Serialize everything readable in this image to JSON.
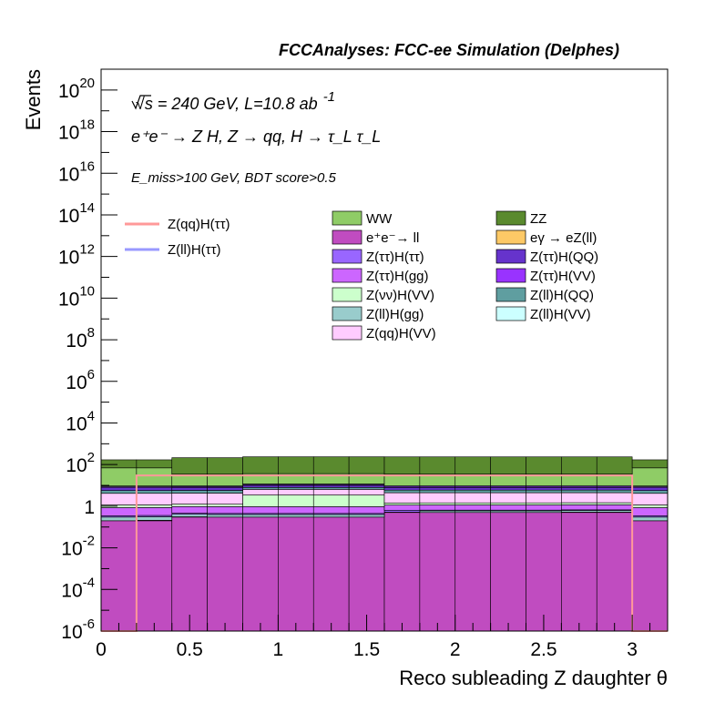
{
  "chart_data": {
    "type": "stacked-histogram",
    "header": "FCCAnalyses: FCC-ee Simulation (Delphes)",
    "xlabel": "Reco subleading Z daughter θ",
    "ylabel": "Events",
    "xlim": [
      0,
      3.2
    ],
    "ylim": [
      1e-06,
      1e+21
    ],
    "yscale": "log",
    "x_ticks": [
      "0",
      "0.5",
      "1",
      "1.5",
      "2",
      "2.5",
      "3"
    ],
    "y_ticks": [
      {
        "base": "10",
        "exp": "20"
      },
      {
        "base": "10",
        "exp": "18"
      },
      {
        "base": "10",
        "exp": "16"
      },
      {
        "base": "10",
        "exp": "14"
      },
      {
        "base": "10",
        "exp": "12"
      },
      {
        "base": "10",
        "exp": "10"
      },
      {
        "base": "10",
        "exp": "8"
      },
      {
        "base": "10",
        "exp": "6"
      },
      {
        "base": "10",
        "exp": "4"
      },
      {
        "base": "10",
        "exp": "2"
      },
      {
        "base": "1",
        "exp": ""
      },
      {
        "base": "10",
        "exp": "-2"
      },
      {
        "base": "10",
        "exp": "-4"
      },
      {
        "base": "10",
        "exp": "-6"
      }
    ],
    "annotations": {
      "energy": "√s = 240 GeV, L=10.8 ab",
      "energy_sup": "-1",
      "process": "e⁺e⁻ → Z H, Z → qq, H → τ_L τ_L",
      "cuts": "E_miss>100 GeV, BDT score>0.5"
    },
    "bin_edges": [
      0,
      0.2,
      0.4,
      0.6,
      0.8,
      1.0,
      1.2,
      1.4,
      1.6,
      1.8,
      2.0,
      2.2,
      2.4,
      2.6,
      2.8,
      3.0,
      3.2
    ],
    "stack_order_bottom_to_top": [
      "e⁺e⁻→ ll",
      "eγ → eZ(ll)",
      "Z(ll)H(gg)",
      "Z(ττ)H(ττ)",
      "Z(ττ)H(gg)",
      "Z(νν)H(VV)",
      "Z(qq)H(VV)",
      "Z(ll)H(QQ)",
      "Z(ττ)H(QQ)",
      "Z(ττ)H(VV)",
      "Z(ll)H(VV)",
      "WW",
      "ZZ"
    ],
    "series": [
      {
        "name": "WW",
        "color": "#8fcc66",
        "values": [
          60,
          60,
          25,
          25,
          25,
          25,
          25,
          25,
          25,
          25,
          25,
          25,
          25,
          25,
          25,
          60
        ]
      },
      {
        "name": "ZZ",
        "color": "#5a8a2e",
        "values": [
          100,
          100,
          180,
          180,
          200,
          200,
          200,
          200,
          200,
          200,
          200,
          200,
          200,
          200,
          200,
          100
        ]
      },
      {
        "name": "e⁺e⁻→ ll",
        "color": "#c04cc0",
        "values": [
          0.2,
          0.2,
          0.3,
          0.3,
          0.3,
          0.3,
          0.3,
          0.3,
          0.5,
          0.5,
          0.5,
          0.5,
          0.5,
          0.5,
          0.5,
          0.2
        ]
      },
      {
        "name": "eγ → eZ(ll)",
        "color": "#fdc966",
        "values": [
          0,
          0.01,
          0.01,
          0,
          0,
          0,
          0,
          0,
          0,
          0,
          0,
          0,
          0,
          0.02,
          0.02,
          0
        ]
      },
      {
        "name": "Z(ττ)H(ττ)",
        "color": "#9966ff",
        "values": [
          0.05,
          0.05,
          0.05,
          0.05,
          0.05,
          0.05,
          0.05,
          0.05,
          0.12,
          0.05,
          0.05,
          0.05,
          0.05,
          0.05,
          0.05,
          0.05
        ]
      },
      {
        "name": "Z(ττ)H(QQ)",
        "color": "#6633cc",
        "values": [
          2,
          2,
          2,
          2,
          2,
          2,
          2,
          2,
          2,
          2,
          2,
          2,
          2,
          2,
          2,
          2
        ]
      },
      {
        "name": "Z(ττ)H(gg)",
        "color": "#cc66ff",
        "values": [
          0.5,
          0.5,
          0.5,
          0.5,
          0.5,
          0.5,
          0.5,
          0.5,
          0.5,
          0.5,
          0.5,
          0.5,
          0.5,
          0.5,
          0.5,
          0.5
        ]
      },
      {
        "name": "Z(ττ)H(VV)",
        "color": "#9933ff",
        "values": [
          1,
          1,
          1,
          1,
          1,
          1,
          1,
          1,
          1,
          1,
          1,
          1,
          1,
          1,
          1,
          1
        ]
      },
      {
        "name": "Z(νν)H(VV)",
        "color": "#ccffcc",
        "values": [
          0.3,
          0.3,
          0.3,
          0.3,
          2.5,
          2.5,
          2.5,
          2.5,
          0.3,
          0.3,
          0.3,
          0.3,
          0.3,
          0.3,
          0.3,
          0.3
        ]
      },
      {
        "name": "Z(ll)H(QQ)",
        "color": "#5f9ea0",
        "values": [
          1.5,
          1.5,
          1.5,
          1.5,
          1.5,
          1.5,
          1.5,
          1.5,
          1.5,
          1.5,
          1.5,
          1.5,
          1.5,
          1.5,
          1.5,
          1.5
        ]
      },
      {
        "name": "Z(ll)H(gg)",
        "color": "#99cccc",
        "values": [
          0.1,
          0.1,
          0.1,
          0.1,
          0.1,
          0.1,
          0.1,
          0.1,
          0.02,
          0.1,
          0.1,
          0.1,
          0.1,
          0.1,
          0.1,
          0.1
        ]
      },
      {
        "name": "Z(ll)H(VV)",
        "color": "#ccffff",
        "values": [
          0.8,
          0.8,
          0.8,
          0.8,
          0.8,
          0.8,
          0.8,
          0.8,
          0.8,
          0.8,
          0.8,
          0.8,
          0.8,
          0.8,
          0.8,
          0.8
        ]
      },
      {
        "name": "Z(qq)H(VV)",
        "color": "#ffccff",
        "values": [
          3,
          3,
          3,
          3,
          3,
          3,
          3,
          3,
          3,
          3,
          3,
          3,
          3,
          3,
          3,
          3
        ]
      }
    ],
    "overlays": [
      {
        "name": "Z(qq)H(ττ)",
        "color": "#ff9999",
        "values": [
          0,
          30,
          30,
          30,
          30,
          30,
          30,
          30,
          30,
          30,
          30,
          30,
          30,
          30,
          30,
          0
        ]
      },
      {
        "name": "Z(ll)H(ττ)",
        "color": "#9999ff",
        "values": [
          0,
          0,
          0,
          0,
          0,
          0,
          0,
          0,
          0,
          0,
          0,
          0,
          0,
          0,
          0,
          0
        ]
      }
    ],
    "legend_columns": [
      [
        "WW",
        "e⁺e⁻→ ll",
        "Z(ττ)H(ττ)",
        "Z(ττ)H(gg)",
        "Z(νν)H(VV)",
        "Z(ll)H(gg)",
        "Z(qq)H(VV)"
      ],
      [
        "ZZ",
        "eγ → eZ(ll)",
        "Z(ττ)H(QQ)",
        "Z(ττ)H(VV)",
        "Z(ll)H(QQ)",
        "Z(ll)H(VV)"
      ]
    ]
  }
}
